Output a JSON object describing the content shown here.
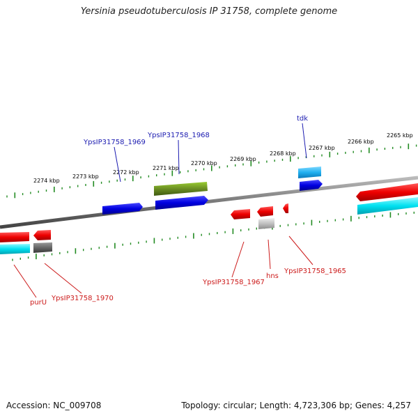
{
  "title": "Yersinia pseudotuberculosis IP 31758, complete genome",
  "footer": {
    "accession": "Accession: NC_009708",
    "summary": "Topology: circular; Length: 4,723,306 bp; Genes: 4,257"
  },
  "colors": {
    "backbone": "#777777",
    "tick": "#228B22",
    "cds_red": "#ff0000",
    "cds_blue": "#0000ee",
    "cds_cyan": "#00e5ee",
    "cds_olive": "#6b8e23",
    "cds_gray": "#666666",
    "cds_lightgray": "#bbbbbb",
    "label_blue": "#1a1ab0",
    "label_red": "#cc1a1a"
  },
  "scale_labels": [
    "2274 kbp",
    "2273 kbp",
    "2272 kbp",
    "2271 kbp",
    "2270 kbp",
    "2269 kbp",
    "2268 kbp",
    "2267 kbp",
    "2266 kbp",
    "2265 kbp"
  ],
  "gene_labels_top": [
    "YpsIP31758_1969",
    "YpsIP31758_1968",
    "tdk"
  ],
  "gene_labels_bottom": [
    "purU",
    "YpsIP31758_1970",
    "YpsIP31758_1967",
    "hns",
    "YpsIP31758_1965"
  ]
}
